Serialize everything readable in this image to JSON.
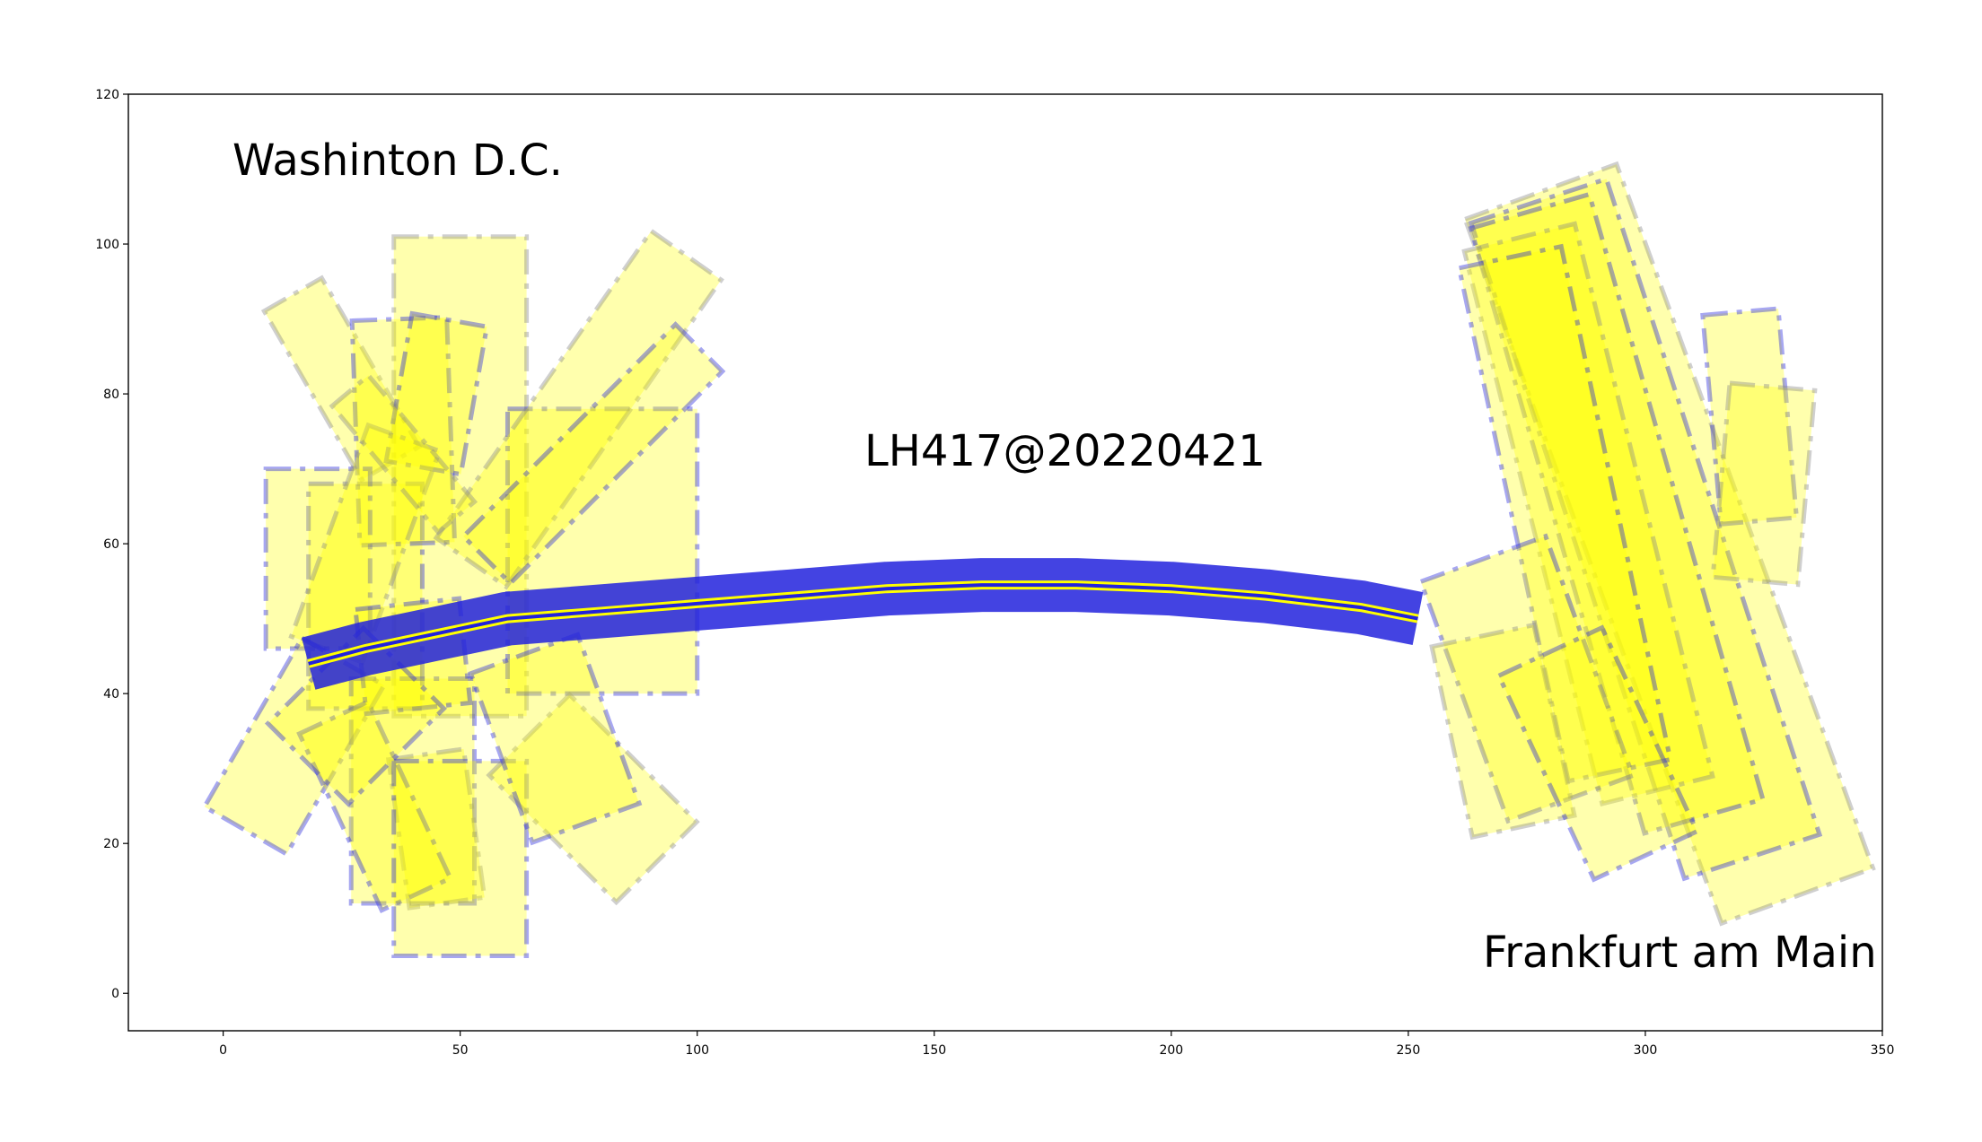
{
  "chart_data": {
    "type": "scatter",
    "title": "",
    "xlabel": "",
    "ylabel": "",
    "xlim": [
      -20,
      350
    ],
    "ylim": [
      -5,
      120
    ],
    "x_ticks": [
      0,
      50,
      100,
      150,
      200,
      250,
      300,
      350
    ],
    "y_ticks": [
      0,
      20,
      40,
      60,
      80,
      100,
      120
    ],
    "grid": false,
    "legend": "none",
    "colors": {
      "fill": "#ffff00",
      "edge_primary": "#2222dd",
      "edge_secondary": "#888888"
    },
    "annotations": [
      {
        "text": "Washinton D.C.",
        "x": 2,
        "y": 111
      },
      {
        "text": "LH417@20220421",
        "x": 134,
        "y": 71
      },
      {
        "text": "Frankfurt am Main",
        "x": 265,
        "y": 5
      }
    ],
    "path_centerline": [
      [
        18,
        44
      ],
      [
        30,
        46
      ],
      [
        45,
        48
      ],
      [
        60,
        50
      ],
      [
        80,
        51
      ],
      [
        100,
        52
      ],
      [
        120,
        53
      ],
      [
        140,
        54
      ],
      [
        160,
        54.5
      ],
      [
        180,
        54.5
      ],
      [
        200,
        54
      ],
      [
        220,
        53
      ],
      [
        240,
        51.5
      ],
      [
        252,
        50
      ]
    ],
    "departure_panels": [
      {
        "cx": 50,
        "cy": 69,
        "w": 28,
        "h": 64,
        "angle": 0
      },
      {
        "cx": 30,
        "cy": 53,
        "w": 24,
        "h": 30,
        "angle": 0
      },
      {
        "cx": 80,
        "cy": 59,
        "w": 40,
        "h": 38,
        "angle": 0
      },
      {
        "cx": 25,
        "cy": 82,
        "w": 14,
        "h": 26,
        "angle": 30
      },
      {
        "cx": 38,
        "cy": 75,
        "w": 20,
        "h": 30,
        "angle": 2
      },
      {
        "cx": 45,
        "cy": 80,
        "w": 16,
        "h": 20,
        "angle": -10
      },
      {
        "cx": 75,
        "cy": 78,
        "w": 18,
        "h": 50,
        "angle": -35
      },
      {
        "cx": 78,
        "cy": 72,
        "w": 14,
        "h": 40,
        "angle": -45
      },
      {
        "cx": 20,
        "cy": 58,
        "w": 22,
        "h": 24,
        "angle": 0
      },
      {
        "cx": 30,
        "cy": 60,
        "w": 16,
        "h": 30,
        "angle": -20
      },
      {
        "cx": 15,
        "cy": 33,
        "w": 20,
        "h": 26,
        "angle": -30
      },
      {
        "cx": 40,
        "cy": 27,
        "w": 26,
        "h": 30,
        "angle": 0
      },
      {
        "cx": 45,
        "cy": 22,
        "w": 16,
        "h": 20,
        "angle": 8
      },
      {
        "cx": 32,
        "cy": 25,
        "w": 16,
        "h": 26,
        "angle": 25
      },
      {
        "cx": 50,
        "cy": 18,
        "w": 28,
        "h": 26,
        "angle": 0
      },
      {
        "cx": 78,
        "cy": 26,
        "w": 24,
        "h": 24,
        "angle": 45
      },
      {
        "cx": 70,
        "cy": 34,
        "w": 24,
        "h": 24,
        "angle": 20
      },
      {
        "cx": 40,
        "cy": 45,
        "w": 22,
        "h": 14,
        "angle": 6
      },
      {
        "cx": 38,
        "cy": 72,
        "w": 10,
        "h": 22,
        "angle": 40
      },
      {
        "cx": 28,
        "cy": 37,
        "w": 24,
        "h": 18,
        "angle": -45
      }
    ],
    "arrival_panels": [
      {
        "cx": 305,
        "cy": 60,
        "w": 34,
        "h": 100,
        "angle": 20
      },
      {
        "cx": 300,
        "cy": 62,
        "w": 30,
        "h": 92,
        "angle": 18
      },
      {
        "cx": 294,
        "cy": 64,
        "w": 26,
        "h": 84,
        "angle": 16
      },
      {
        "cx": 288,
        "cy": 64,
        "w": 24,
        "h": 76,
        "angle": 14
      },
      {
        "cx": 283,
        "cy": 64,
        "w": 22,
        "h": 70,
        "angle": 12
      },
      {
        "cx": 275,
        "cy": 42,
        "w": 28,
        "h": 34,
        "angle": 20
      },
      {
        "cx": 270,
        "cy": 35,
        "w": 22,
        "h": 26,
        "angle": 12
      },
      {
        "cx": 290,
        "cy": 32,
        "w": 24,
        "h": 30,
        "angle": 25
      },
      {
        "cx": 322,
        "cy": 77,
        "w": 16,
        "h": 28,
        "angle": 5
      },
      {
        "cx": 325,
        "cy": 68,
        "w": 18,
        "h": 26,
        "angle": -5
      }
    ]
  },
  "figure_labels": {
    "x_tick_labels": [
      "0",
      "50",
      "100",
      "150",
      "200",
      "250",
      "300",
      "350"
    ],
    "y_tick_labels": [
      "0",
      "20",
      "40",
      "60",
      "80",
      "100",
      "120"
    ]
  }
}
